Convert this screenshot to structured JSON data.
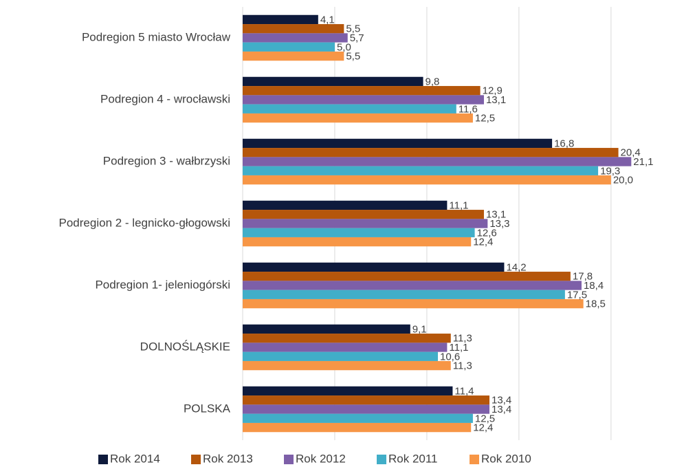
{
  "chart_data": {
    "type": "hbar",
    "categories": [
      "Podregion 5 miasto Wrocław",
      "Podregion 4 - wrocławski",
      "Podregion 3 - wałbrzyski",
      "Podregion 2 - legnicko-głogowski",
      "Podregion 1- jeleniogórski",
      "DOLNOŚLĄSKIE",
      "POLSKA"
    ],
    "series": [
      {
        "name": "Rok 2014",
        "color": "#0e1a3c",
        "values": [
          4.1,
          9.8,
          16.8,
          11.1,
          14.2,
          9.1,
          11.4
        ],
        "value_labels": [
          "4,1",
          "9,8",
          "16,8",
          "11,1",
          "14,2",
          "9,1",
          "11,4"
        ]
      },
      {
        "name": "Rok 2013",
        "color": "#b5560b",
        "values": [
          5.5,
          12.9,
          20.4,
          13.1,
          17.8,
          11.3,
          13.4
        ],
        "value_labels": [
          "5,5",
          "12,9",
          "20,4",
          "13,1",
          "17,8",
          "11,3",
          "13,4"
        ]
      },
      {
        "name": "Rok 2012",
        "color": "#7d5fa8",
        "values": [
          5.7,
          13.1,
          21.1,
          13.3,
          18.4,
          11.1,
          13.4
        ],
        "value_labels": [
          "5,7",
          "13,1",
          "21,1",
          "13,3",
          "18,4",
          "11,1",
          "13,4"
        ]
      },
      {
        "name": "Rok 2011",
        "color": "#41aec8",
        "values": [
          5.0,
          11.6,
          19.3,
          12.6,
          17.5,
          10.6,
          12.5
        ],
        "value_labels": [
          "5,0",
          "11,6",
          "19,3",
          "12,6",
          "17,5",
          "10,6",
          "12,5"
        ]
      },
      {
        "name": "Rok 2010",
        "color": "#f79646",
        "values": [
          5.5,
          12.5,
          20.0,
          12.4,
          18.5,
          11.3,
          12.4
        ],
        "value_labels": [
          "5,5",
          "12,5",
          "20,0",
          "12,4",
          "18,5",
          "11,3",
          "12,4"
        ]
      }
    ],
    "xlim": [
      0,
      24
    ],
    "xticks": [
      0,
      5,
      10,
      15,
      20
    ],
    "grid": true,
    "legend": "bottom"
  }
}
